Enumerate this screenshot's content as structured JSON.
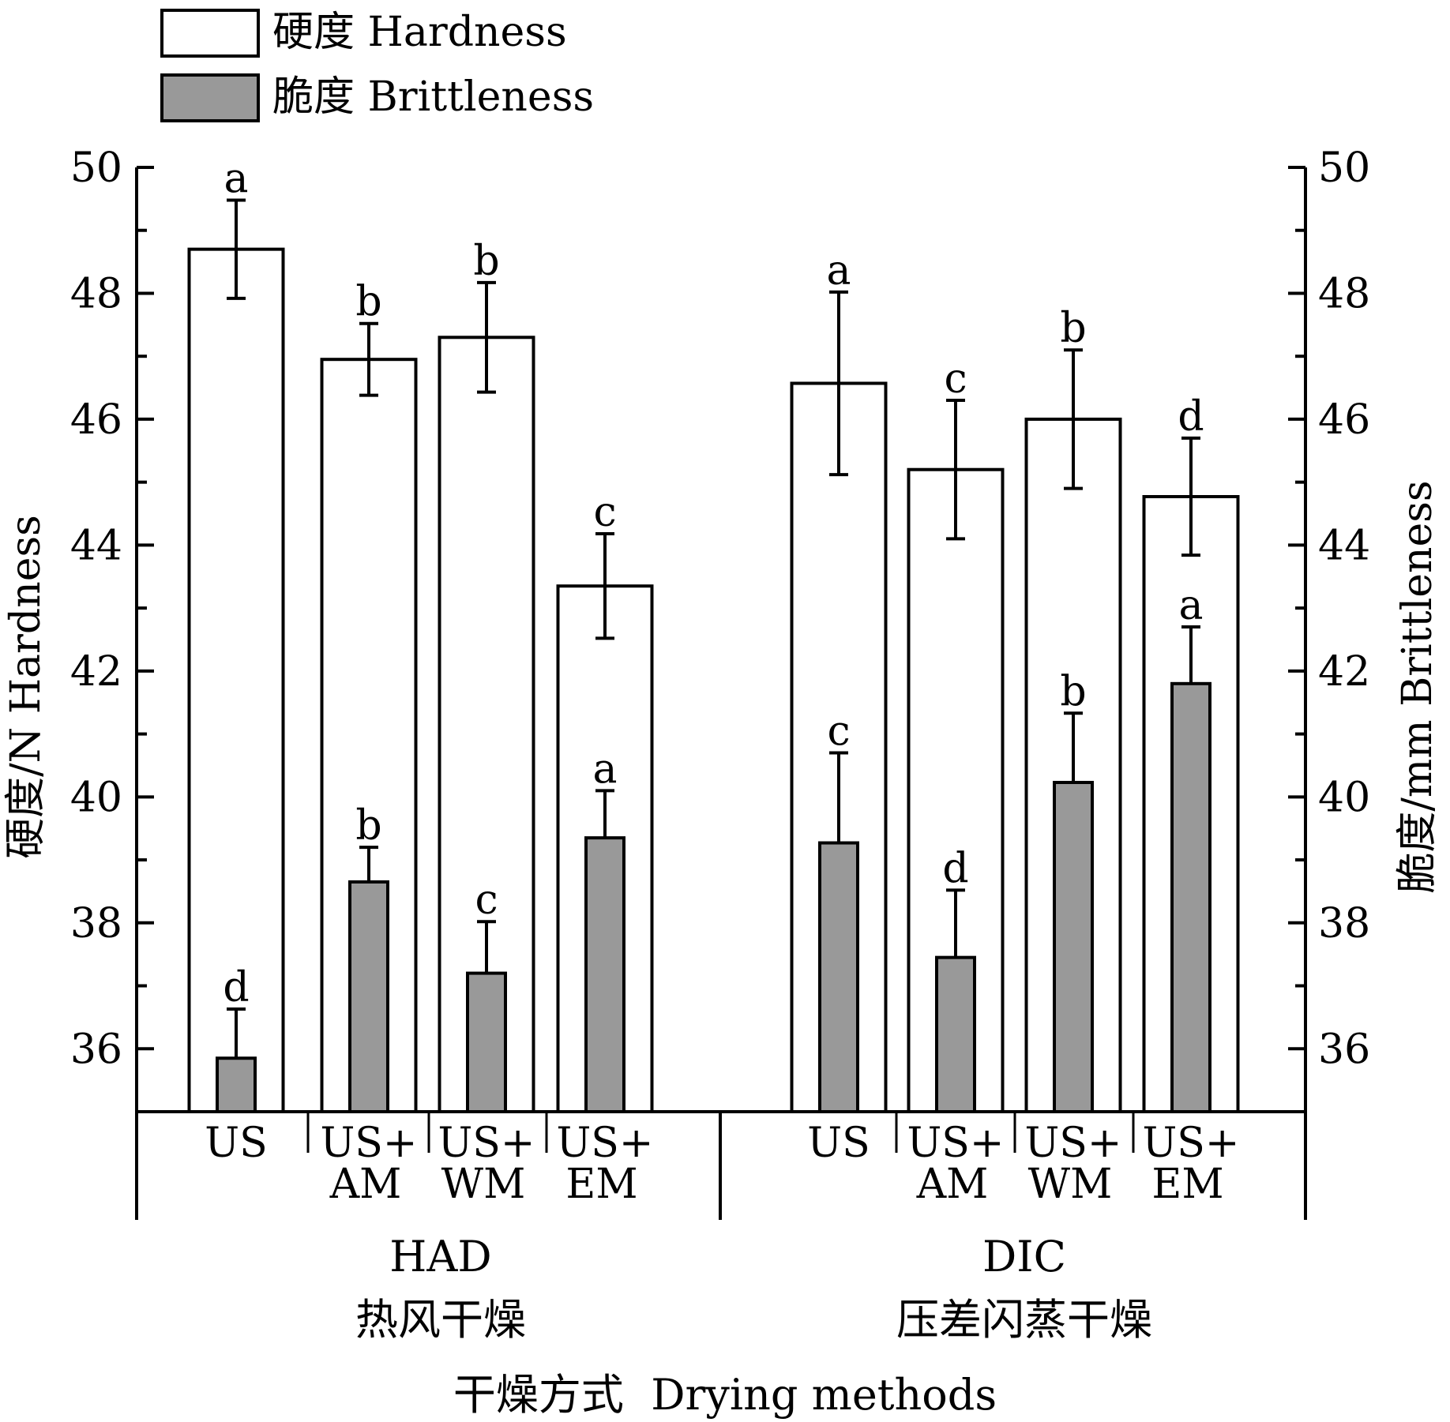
{
  "chart_data": {
    "type": "bar",
    "legend": {
      "placement": "top-left",
      "entries": [
        {
          "label": "硬度 Hardness",
          "color": "#ffffff"
        },
        {
          "label": "脆度 Brittleness",
          "color": "#999999"
        }
      ]
    },
    "ylabel_left": "硬度/N Hardness",
    "ylabel_right": "脆度/mm Brittleness",
    "xlabel": "干燥方式  Drying methods",
    "ylim": [
      35,
      50
    ],
    "yticks": [
      36,
      38,
      40,
      42,
      44,
      46,
      48,
      50
    ],
    "grid": false,
    "groups": [
      {
        "name": "HAD",
        "name_cn": "热风干燥",
        "categories": [
          {
            "line1": "US",
            "line2": ""
          },
          {
            "line1": "US+",
            "line2": "AM"
          },
          {
            "line1": "US+",
            "line2": "WM"
          },
          {
            "line1": "US+",
            "line2": "EM"
          }
        ],
        "hardness": [
          48.7,
          46.95,
          47.3,
          43.35
        ],
        "hardness_err": [
          0.78,
          0.57,
          0.87,
          0.83
        ],
        "hardness_sig": [
          "a",
          "b",
          "b",
          "c"
        ],
        "brittleness": [
          35.85,
          38.65,
          37.2,
          39.35
        ],
        "brittleness_err": [
          0.78,
          0.55,
          0.82,
          0.75
        ],
        "brittleness_sig": [
          "d",
          "b",
          "c",
          "a"
        ]
      },
      {
        "name": "DIC",
        "name_cn": "压差闪蒸干燥",
        "categories": [
          {
            "line1": "US",
            "line2": ""
          },
          {
            "line1": "US+",
            "line2": "AM"
          },
          {
            "line1": "US+",
            "line2": "WM"
          },
          {
            "line1": "US+",
            "line2": "EM"
          }
        ],
        "hardness": [
          46.57,
          45.2,
          46.0,
          44.77
        ],
        "hardness_err": [
          1.45,
          1.1,
          1.1,
          0.93
        ],
        "hardness_sig": [
          "a",
          "c",
          "b",
          "d"
        ],
        "brittleness": [
          39.27,
          37.45,
          40.23,
          41.8
        ],
        "brittleness_err": [
          1.43,
          1.07,
          1.1,
          0.9
        ],
        "brittleness_sig": [
          "c",
          "d",
          "b",
          "a"
        ]
      }
    ]
  }
}
